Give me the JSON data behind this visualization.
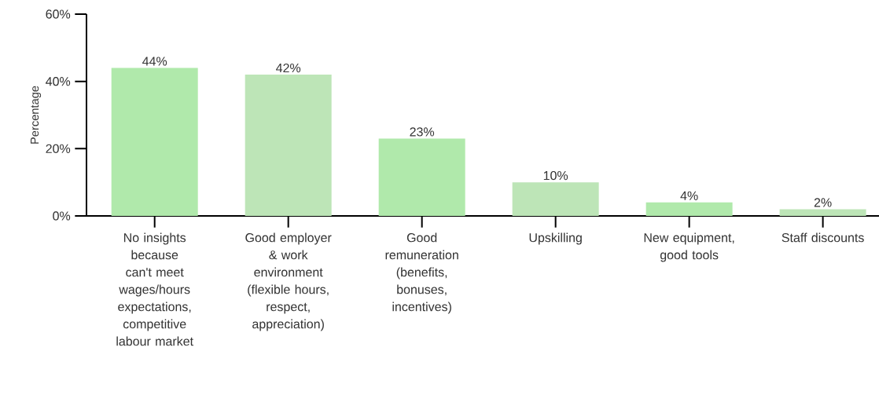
{
  "chart_data": {
    "type": "bar",
    "ylabel": "Percentage",
    "categories": [
      "No insights because can't meet wages/hours expectations, competitive labour market",
      "Good employer & work environment (flexible hours, respect, appreciation)",
      "Good remuneration (benefits, bonuses, incentives)",
      "Upskilling",
      "New equipment, good tools",
      "Staff discounts"
    ],
    "values": [
      44,
      42,
      23,
      10,
      4,
      2
    ],
    "value_labels": [
      "44%",
      "42%",
      "23%",
      "10%",
      "4%",
      "2%"
    ],
    "colors": [
      "#b0e9ab",
      "#bde5b7",
      "#b0e9ab",
      "#bde5b7",
      "#b0e9ab",
      "#bde5b7"
    ],
    "ylim": [
      0,
      60
    ],
    "yticks": [
      {
        "value": 0,
        "label": "0%"
      },
      {
        "value": 20,
        "label": "20%"
      },
      {
        "value": 40,
        "label": "40%"
      },
      {
        "value": 60,
        "label": "60%"
      }
    ],
    "grid": false
  }
}
